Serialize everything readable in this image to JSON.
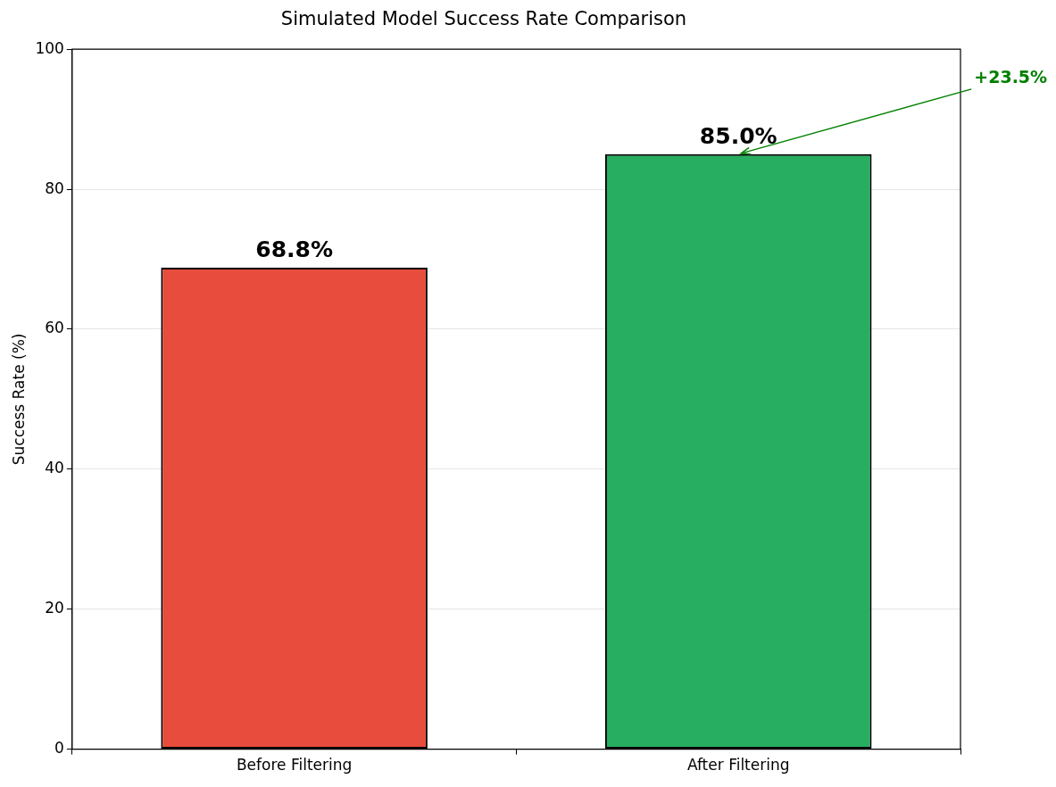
{
  "chart_data": {
    "type": "bar",
    "title": "Simulated Model Success Rate Comparison",
    "ylabel": "Success Rate (%)",
    "categories": [
      "Before Filtering",
      "After Filtering"
    ],
    "values": [
      68.8,
      85.0
    ],
    "colors": [
      "#e74c3c",
      "#27ae60"
    ],
    "value_labels": [
      "68.8%",
      "85.0%"
    ],
    "annotations": [
      {
        "text": "+23.5%",
        "x": "After Filtering",
        "y": 85
      }
    ],
    "ylim": [
      0,
      100
    ],
    "yticks": [
      0,
      20,
      40,
      60,
      80,
      100
    ],
    "grid": "y",
    "legend": false
  }
}
